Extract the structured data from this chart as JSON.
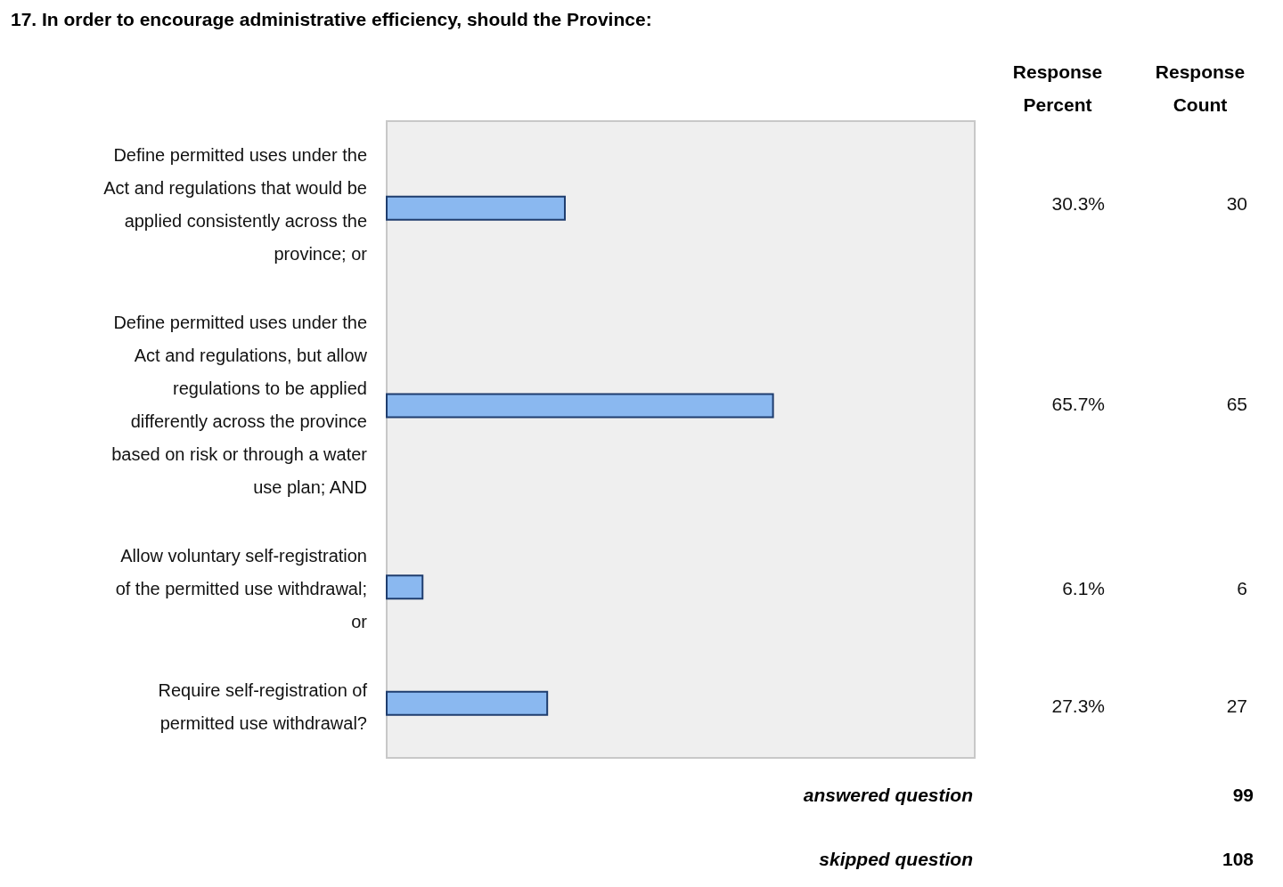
{
  "chart_data": {
    "type": "bar",
    "orientation": "horizontal",
    "title": "17. In order to encourage administrative efficiency, should the Province:",
    "categories": [
      "Define permitted uses under the Act and regulations that would be applied consistently across the province; or",
      "Define permitted uses under the Act and regulations, but allow regulations to be applied differently across the province based on risk or through a water use plan; AND",
      "Allow voluntary self-registration of the permitted use withdrawal; or",
      "Require self-registration of permitted use withdrawal?"
    ],
    "values": [
      30.3,
      65.7,
      6.1,
      27.3
    ],
    "value_labels": [
      "30.3%",
      "65.7%",
      "6.1%",
      "27.3%"
    ],
    "color": "#8ab8f0",
    "xlim": [
      0,
      100
    ],
    "tick_labels": "y",
    "grid": false,
    "annotations": [
      "Response Percent",
      "Response Count",
      "30",
      "65",
      "6",
      "27",
      "answered question",
      "99",
      "skipped question",
      "108"
    ]
  }
}
